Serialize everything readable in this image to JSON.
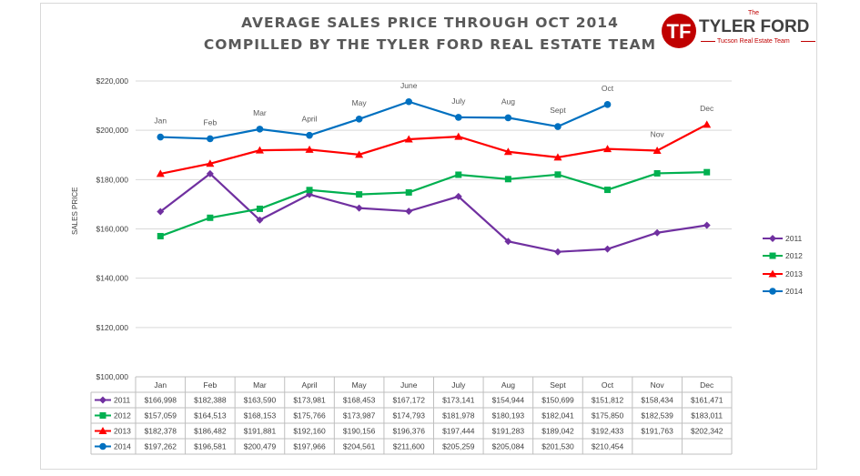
{
  "title": "AVERAGE SALES PRICE THROUGH OCT 2014",
  "subtitle": "COMPILLED BY THE TYLER FORD REAL ESTATE TEAM",
  "logo": {
    "the": "The",
    "name": "TYLER FORD",
    "tagline": "Tucson Real Estate Team",
    "monogram": "TF",
    "colors": {
      "red": "#c00000",
      "dark": "#404040"
    }
  },
  "chart_data": {
    "type": "line",
    "categories": [
      "Jan",
      "Feb",
      "Mar",
      "April",
      "May",
      "June",
      "July",
      "Aug",
      "Sept",
      "Oct",
      "Nov",
      "Dec"
    ],
    "ylabel": "SALES PRICE",
    "ylim": [
      100000,
      220000
    ],
    "yticks": [
      100000,
      120000,
      140000,
      160000,
      180000,
      200000,
      220000
    ],
    "ytick_labels": [
      "$100,000",
      "$120,000",
      "$140,000",
      "$160,000",
      "$180,000",
      "$200,000",
      "$220,000"
    ],
    "grid": true,
    "legend_position": "right",
    "month_annotations": [
      "Jan",
      "Feb",
      "Mar",
      "April",
      "May",
      "June",
      "July",
      "Aug",
      "Sept",
      "Oct",
      "Nov",
      "Dec"
    ],
    "series": [
      {
        "name": "2011",
        "color": "#7030a0",
        "marker": "diamond",
        "values": [
          166998,
          182388,
          163590,
          173981,
          168453,
          167172,
          173141,
          154944,
          150699,
          151812,
          158434,
          161471
        ],
        "labels": [
          "$166,998",
          "$182,388",
          "$163,590",
          "$173,981",
          "$168,453",
          "$167,172",
          "$173,141",
          "$154,944",
          "$150,699",
          "$151,812",
          "$158,434",
          "$161,471"
        ]
      },
      {
        "name": "2012",
        "color": "#00b050",
        "marker": "square",
        "values": [
          157059,
          164513,
          168153,
          175766,
          173987,
          174793,
          181978,
          180193,
          182041,
          175850,
          182539,
          183011
        ],
        "labels": [
          "$157,059",
          "$164,513",
          "$168,153",
          "$175,766",
          "$173,987",
          "$174,793",
          "$181,978",
          "$180,193",
          "$182,041",
          "$175,850",
          "$182,539",
          "$183,011"
        ]
      },
      {
        "name": "2013",
        "color": "#ff0000",
        "marker": "triangle",
        "values": [
          182378,
          186482,
          191881,
          192160,
          190156,
          196376,
          197444,
          191283,
          189042,
          192433,
          191763,
          202342
        ],
        "labels": [
          "$182,378",
          "$186,482",
          "$191,881",
          "$192,160",
          "$190,156",
          "$196,376",
          "$197,444",
          "$191,283",
          "$189,042",
          "$192,433",
          "$191,763",
          "$202,342"
        ]
      },
      {
        "name": "2014",
        "color": "#0070c0",
        "marker": "circle",
        "values": [
          197262,
          196581,
          200479,
          197966,
          204561,
          211600,
          205259,
          205084,
          201530,
          210454,
          null,
          null
        ],
        "labels": [
          "$197,262",
          "$196,581",
          "$200,479",
          "$197,966",
          "$204,561",
          "$211,600",
          "$205,259",
          "$205,084",
          "$201,530",
          "$210,454",
          "",
          ""
        ]
      }
    ]
  }
}
